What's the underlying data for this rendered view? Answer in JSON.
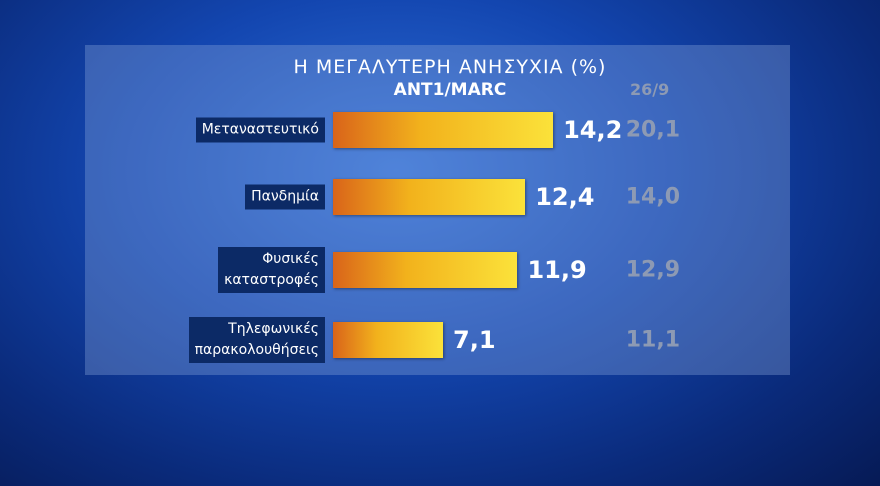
{
  "chart_data": {
    "type": "bar",
    "orientation": "horizontal",
    "title": "Η ΜΕΓΑΛΥΤΕΡΗ ΑΝΗΣΥΧΙΑ (%)",
    "subtitle": "ANT1/MARC",
    "categories": [
      "Μεταναστευτικό",
      "Πανδημία",
      "Φυσικές\nκαταστροφές",
      "Τηλεφωνικές\nπαρακολουθήσεις"
    ],
    "values": [
      14.2,
      12.4,
      11.9,
      7.1
    ],
    "value_labels": [
      "14,2",
      "12,4",
      "11,9",
      "7,1"
    ],
    "color": "#f2b21c",
    "previous": {
      "name": "26/9",
      "values": [
        20.1,
        14.0,
        12.9,
        11.1
      ],
      "value_labels": [
        "20,1",
        "14,0",
        "12,9",
        "11,1"
      ]
    },
    "xlim": [
      0,
      15
    ]
  }
}
